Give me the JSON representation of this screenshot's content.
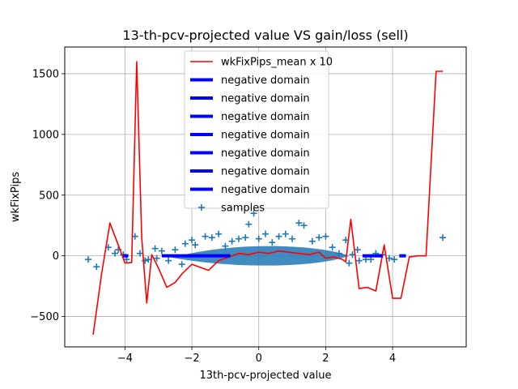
{
  "chart_data": {
    "type": "scatter",
    "title": "13-th-pcv-projected value VS gain/loss (sell)",
    "xlabel": "13th-pcv-projected value",
    "ylabel": "wkFixPips",
    "xlim": [
      -5.8,
      6.2
    ],
    "ylim": [
      -750,
      1720
    ],
    "x_ticks": [
      -4,
      -2,
      0,
      2,
      4
    ],
    "x_tick_labels": [
      "−4",
      "−2",
      "0",
      "2",
      "4"
    ],
    "y_ticks": [
      -500,
      0,
      500,
      1000,
      1500
    ],
    "y_tick_labels": [
      "−500",
      "0",
      "500",
      "1000",
      "1500"
    ],
    "grid": true,
    "legend_placement": "top-center",
    "colors": {
      "mean_line": "#ff0000",
      "negative_domain": "#0000ff",
      "samples": "#1f77b4"
    },
    "series": [
      {
        "name": "wkFixPips_mean x 10",
        "kind": "line",
        "x": [
          -4.95,
          -4.7,
          -4.45,
          -4.2,
          -4.0,
          -3.8,
          -3.65,
          -3.5,
          -3.35,
          -3.2,
          -3.0,
          -2.75,
          -2.5,
          -2.3,
          -2.0,
          -1.8,
          -1.5,
          -1.2,
          -0.9,
          -0.6,
          -0.3,
          0.0,
          0.3,
          0.6,
          0.9,
          1.2,
          1.5,
          1.8,
          2.0,
          2.25,
          2.5,
          2.6,
          2.75,
          3.0,
          3.25,
          3.5,
          3.75,
          4.0,
          4.25,
          4.5,
          4.75,
          5.0,
          5.3,
          5.5
        ],
        "y": [
          -650,
          -150,
          270,
          90,
          -60,
          -55,
          1600,
          150,
          -390,
          10,
          -100,
          -260,
          -220,
          -150,
          -70,
          -90,
          -120,
          -40,
          -10,
          20,
          10,
          30,
          20,
          40,
          30,
          20,
          10,
          30,
          -20,
          -10,
          -30,
          -50,
          300,
          -270,
          -260,
          -290,
          90,
          -350,
          -350,
          -10,
          0,
          0,
          1520,
          1520
        ]
      },
      {
        "name": "negative domain",
        "kind": "segment",
        "x": [
          -4.05,
          -3.9
        ],
        "y": [
          0,
          0
        ]
      },
      {
        "name": "negative domain",
        "kind": "segment",
        "x": [
          -2.9,
          -1.6
        ],
        "y": [
          0,
          0
        ]
      },
      {
        "name": "negative domain",
        "kind": "segment",
        "x": [
          -1.6,
          -0.85
        ],
        "y": [
          0,
          0
        ]
      },
      {
        "name": "negative domain",
        "kind": "segment",
        "x": [
          3.1,
          3.45
        ],
        "y": [
          0,
          0
        ]
      },
      {
        "name": "negative domain",
        "kind": "segment",
        "x": [
          3.45,
          3.7
        ],
        "y": [
          0,
          0
        ]
      },
      {
        "name": "negative domain",
        "kind": "segment",
        "x": [
          4.2,
          4.25
        ],
        "y": [
          0,
          0
        ]
      },
      {
        "name": "negative domain",
        "kind": "segment",
        "x": [
          4.25,
          4.4
        ],
        "y": [
          0,
          0
        ]
      },
      {
        "name": "samples",
        "kind": "scatter",
        "points": [
          [
            -5.1,
            -30
          ],
          [
            -4.85,
            -90
          ],
          [
            -4.5,
            70
          ],
          [
            -4.3,
            20
          ],
          [
            -4.2,
            50
          ],
          [
            -4.05,
            10
          ],
          [
            -3.95,
            -30
          ],
          [
            -3.7,
            160
          ],
          [
            -3.55,
            20
          ],
          [
            -3.4,
            -40
          ],
          [
            -3.3,
            -30
          ],
          [
            -3.1,
            60
          ],
          [
            -3.05,
            -20
          ],
          [
            -2.9,
            40
          ],
          [
            -2.7,
            -40
          ],
          [
            -2.5,
            50
          ],
          [
            -2.3,
            -70
          ],
          [
            -2.2,
            100
          ],
          [
            -2.0,
            130
          ],
          [
            -1.9,
            90
          ],
          [
            -1.6,
            160
          ],
          [
            -1.4,
            150
          ],
          [
            -1.2,
            180
          ],
          [
            -1.0,
            80
          ],
          [
            -0.8,
            120
          ],
          [
            -0.6,
            140
          ],
          [
            -0.4,
            150
          ],
          [
            -0.3,
            260
          ],
          [
            -0.15,
            350
          ],
          [
            0.0,
            140
          ],
          [
            0.2,
            180
          ],
          [
            0.4,
            110
          ],
          [
            0.6,
            160
          ],
          [
            0.8,
            180
          ],
          [
            1.0,
            140
          ],
          [
            1.2,
            270
          ],
          [
            1.35,
            250
          ],
          [
            1.6,
            120
          ],
          [
            1.8,
            150
          ],
          [
            2.0,
            160
          ],
          [
            2.2,
            70
          ],
          [
            2.4,
            20
          ],
          [
            2.6,
            130
          ],
          [
            2.7,
            -60
          ],
          [
            2.8,
            10
          ],
          [
            2.95,
            50
          ],
          [
            3.0,
            -40
          ],
          [
            3.2,
            -30
          ],
          [
            3.35,
            -30
          ],
          [
            3.5,
            20
          ],
          [
            3.7,
            10
          ],
          [
            3.9,
            -20
          ],
          [
            4.05,
            -30
          ],
          [
            5.5,
            150
          ]
        ]
      }
    ]
  }
}
